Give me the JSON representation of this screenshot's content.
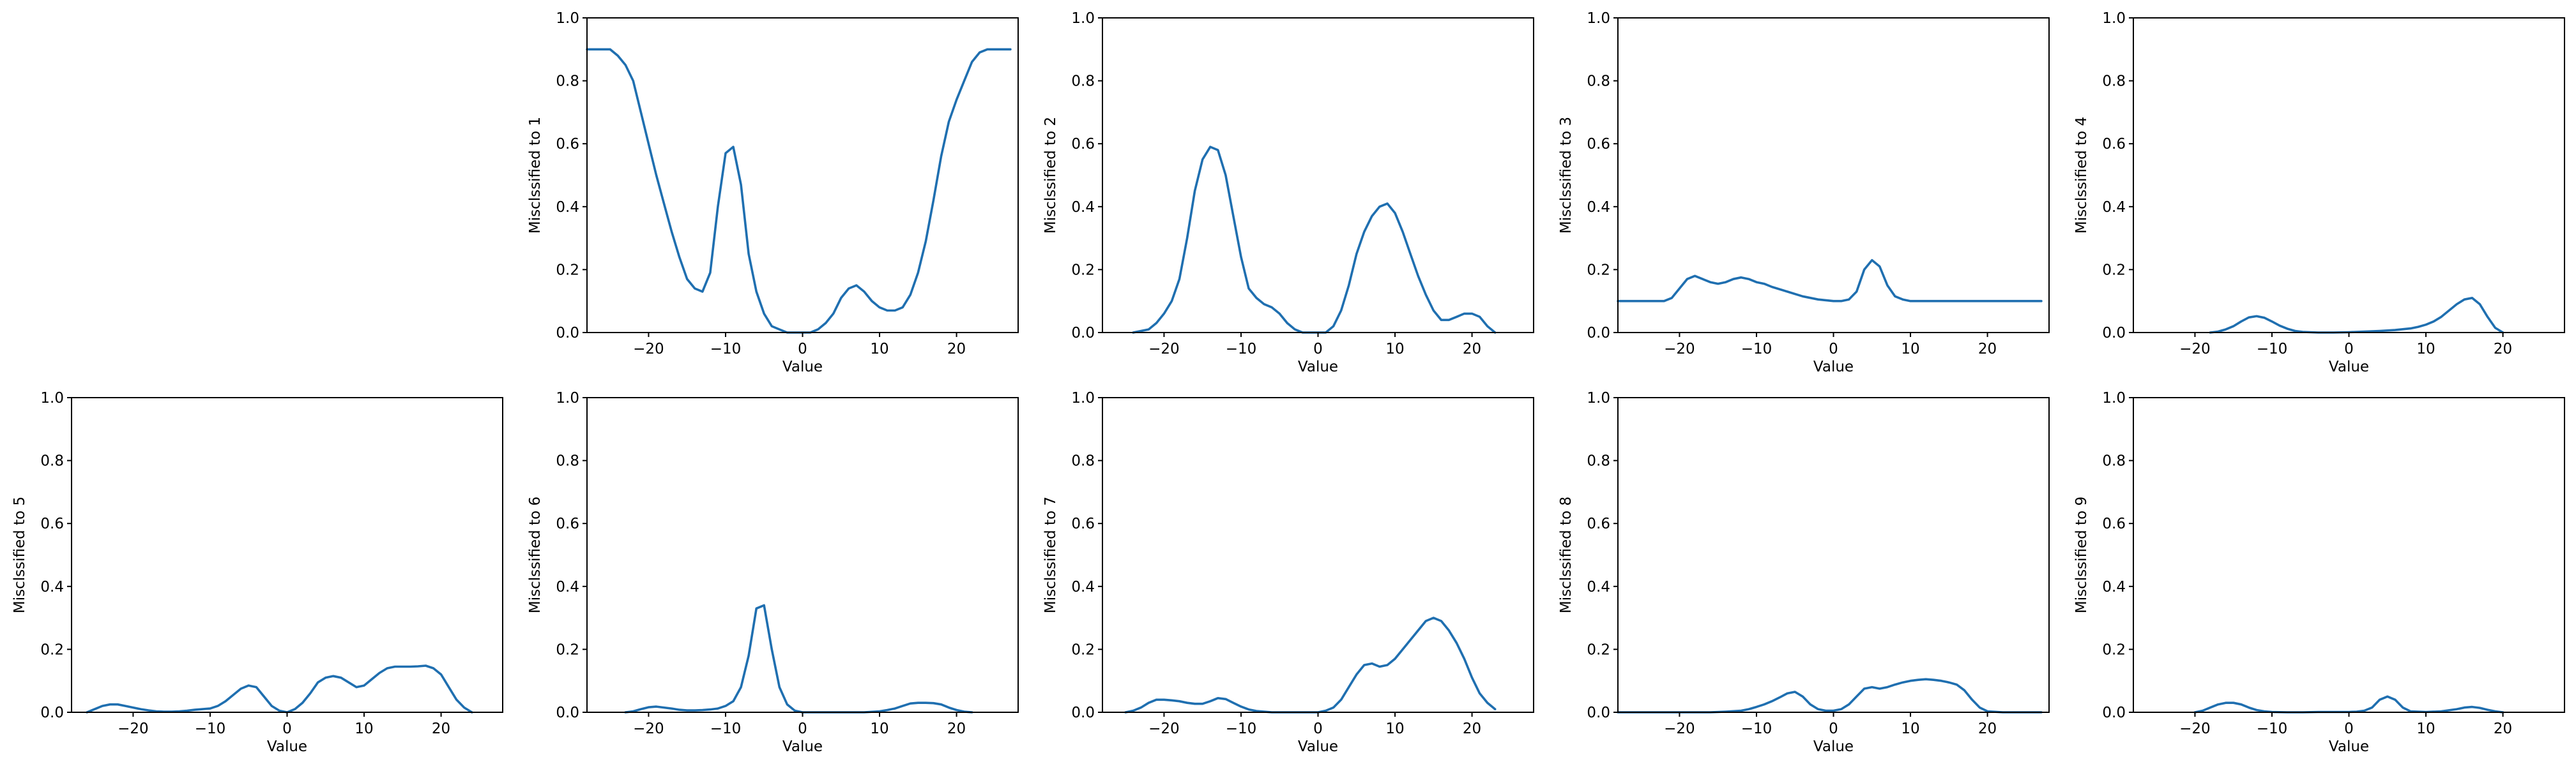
{
  "figure": {
    "line_color": "#1f6fb0"
  },
  "chart_data": [
    {
      "type": "line",
      "row": 0,
      "col": 1,
      "xlabel": "Value",
      "ylabel": "Misclssified to 1",
      "xlim": [
        -28,
        28
      ],
      "ylim": [
        0,
        1
      ],
      "grid": false,
      "xticks": [
        -20,
        -10,
        0,
        10,
        20
      ],
      "yticks": [
        0.0,
        0.2,
        0.4,
        0.6,
        0.8,
        1.0
      ],
      "x": [
        -28,
        -26,
        -25,
        -24,
        -23,
        -22,
        -21,
        -20,
        -19,
        -18,
        -17,
        -16,
        -15,
        -14,
        -13,
        -12,
        -11,
        -10,
        -9,
        -8,
        -7,
        -6,
        -5,
        -4,
        -3,
        -2,
        -1,
        0,
        1,
        2,
        3,
        4,
        5,
        6,
        7,
        8,
        9,
        10,
        11,
        12,
        13,
        14,
        15,
        16,
        17,
        18,
        19,
        20,
        21,
        22,
        23,
        24,
        25,
        26,
        27
      ],
      "y": [
        0.9,
        0.9,
        0.9,
        0.88,
        0.85,
        0.8,
        0.7,
        0.6,
        0.5,
        0.41,
        0.32,
        0.24,
        0.17,
        0.14,
        0.13,
        0.19,
        0.4,
        0.57,
        0.59,
        0.47,
        0.25,
        0.13,
        0.06,
        0.02,
        0.01,
        0.0,
        0.0,
        0.0,
        0.0,
        0.01,
        0.03,
        0.06,
        0.11,
        0.14,
        0.15,
        0.13,
        0.1,
        0.08,
        0.07,
        0.07,
        0.08,
        0.12,
        0.19,
        0.29,
        0.42,
        0.56,
        0.67,
        0.74,
        0.8,
        0.86,
        0.89,
        0.9,
        0.9,
        0.9,
        0.9
      ]
    },
    {
      "type": "line",
      "row": 0,
      "col": 2,
      "xlabel": "Value",
      "ylabel": "Misclssified to 2",
      "xlim": [
        -28,
        28
      ],
      "ylim": [
        0,
        1
      ],
      "grid": false,
      "xticks": [
        -20,
        -10,
        0,
        10,
        20
      ],
      "yticks": [
        0.0,
        0.2,
        0.4,
        0.6,
        0.8,
        1.0
      ],
      "x": [
        -24,
        -22,
        -21,
        -20,
        -19,
        -18,
        -17,
        -16,
        -15,
        -14,
        -13,
        -12,
        -11,
        -10,
        -9,
        -8,
        -7,
        -6,
        -5,
        -4,
        -3,
        -2,
        -1,
        0,
        1,
        2,
        3,
        4,
        5,
        6,
        7,
        8,
        9,
        10,
        11,
        12,
        13,
        14,
        15,
        16,
        17,
        18,
        19,
        20,
        21,
        22,
        23
      ],
      "y": [
        0.0,
        0.01,
        0.03,
        0.06,
        0.1,
        0.17,
        0.3,
        0.45,
        0.55,
        0.59,
        0.58,
        0.5,
        0.37,
        0.24,
        0.14,
        0.11,
        0.09,
        0.08,
        0.06,
        0.03,
        0.01,
        0.0,
        0.0,
        0.0,
        0.0,
        0.02,
        0.07,
        0.15,
        0.25,
        0.32,
        0.37,
        0.4,
        0.41,
        0.38,
        0.32,
        0.25,
        0.18,
        0.12,
        0.07,
        0.04,
        0.04,
        0.05,
        0.06,
        0.06,
        0.05,
        0.02,
        0.0
      ]
    },
    {
      "type": "line",
      "row": 0,
      "col": 3,
      "xlabel": "Value",
      "ylabel": "Misclssified to 3",
      "xlim": [
        -28,
        28
      ],
      "ylim": [
        0,
        1
      ],
      "grid": false,
      "xticks": [
        -20,
        -10,
        0,
        10,
        20
      ],
      "yticks": [
        0.0,
        0.2,
        0.4,
        0.6,
        0.8,
        1.0
      ],
      "x": [
        -28,
        -24,
        -22,
        -21,
        -20,
        -19,
        -18,
        -17,
        -16,
        -15,
        -14,
        -13,
        -12,
        -11,
        -10,
        -9,
        -8,
        -6,
        -4,
        -2,
        0,
        1,
        2,
        3,
        4,
        5,
        6,
        7,
        8,
        9,
        10,
        12,
        15,
        20,
        25,
        27
      ],
      "y": [
        0.1,
        0.1,
        0.1,
        0.11,
        0.14,
        0.17,
        0.18,
        0.17,
        0.16,
        0.155,
        0.16,
        0.17,
        0.175,
        0.17,
        0.16,
        0.155,
        0.145,
        0.13,
        0.115,
        0.105,
        0.1,
        0.1,
        0.105,
        0.13,
        0.2,
        0.23,
        0.21,
        0.15,
        0.115,
        0.105,
        0.1,
        0.1,
        0.1,
        0.1,
        0.1,
        0.1
      ]
    },
    {
      "type": "line",
      "row": 0,
      "col": 4,
      "xlabel": "Value",
      "ylabel": "Misclssified to 4",
      "xlim": [
        -28,
        28
      ],
      "ylim": [
        0,
        1
      ],
      "grid": false,
      "xticks": [
        -20,
        -10,
        0,
        10,
        20
      ],
      "yticks": [
        0.0,
        0.2,
        0.4,
        0.6,
        0.8,
        1.0
      ],
      "x": [
        -18,
        -17,
        -16,
        -15,
        -14,
        -13,
        -12,
        -11,
        -10,
        -9,
        -8,
        -7,
        -6,
        -4,
        -2,
        0,
        2,
        4,
        6,
        8,
        9,
        10,
        11,
        12,
        13,
        14,
        15,
        16,
        17,
        18,
        19,
        20
      ],
      "y": [
        0.0,
        0.003,
        0.01,
        0.02,
        0.035,
        0.048,
        0.052,
        0.047,
        0.035,
        0.022,
        0.012,
        0.005,
        0.002,
        0.0,
        0.0,
        0.001,
        0.003,
        0.005,
        0.008,
        0.013,
        0.018,
        0.025,
        0.035,
        0.05,
        0.07,
        0.09,
        0.105,
        0.11,
        0.09,
        0.05,
        0.015,
        0.0
      ]
    },
    {
      "type": "line",
      "row": 1,
      "col": 0,
      "xlabel": "Value",
      "ylabel": "Misclssified to 5",
      "xlim": [
        -28,
        28
      ],
      "ylim": [
        0,
        1
      ],
      "grid": false,
      "xticks": [
        -20,
        -10,
        0,
        10,
        20
      ],
      "yticks": [
        0.0,
        0.2,
        0.4,
        0.6,
        0.8,
        1.0
      ],
      "x": [
        -26,
        -25,
        -24,
        -23,
        -22,
        -21,
        -20,
        -19,
        -18,
        -17,
        -16,
        -15,
        -14,
        -13,
        -12,
        -11,
        -10,
        -9,
        -8,
        -7,
        -6,
        -5,
        -4,
        -3,
        -2,
        -1,
        0,
        1,
        2,
        3,
        4,
        5,
        6,
        7,
        8,
        9,
        10,
        11,
        12,
        13,
        14,
        15,
        16,
        17,
        18,
        19,
        20,
        21,
        22,
        23,
        24
      ],
      "y": [
        0.0,
        0.01,
        0.02,
        0.025,
        0.025,
        0.02,
        0.015,
        0.01,
        0.006,
        0.003,
        0.002,
        0.002,
        0.003,
        0.005,
        0.008,
        0.01,
        0.012,
        0.02,
        0.035,
        0.055,
        0.075,
        0.085,
        0.08,
        0.05,
        0.02,
        0.005,
        0.0,
        0.01,
        0.03,
        0.06,
        0.095,
        0.11,
        0.115,
        0.11,
        0.095,
        0.08,
        0.085,
        0.105,
        0.125,
        0.14,
        0.145,
        0.145,
        0.145,
        0.146,
        0.148,
        0.14,
        0.12,
        0.08,
        0.04,
        0.015,
        0.0
      ]
    },
    {
      "type": "line",
      "row": 1,
      "col": 1,
      "xlabel": "Value",
      "ylabel": "Misclssified to 6",
      "xlim": [
        -28,
        28
      ],
      "ylim": [
        0,
        1
      ],
      "grid": false,
      "xticks": [
        -20,
        -10,
        0,
        10,
        20
      ],
      "yticks": [
        0.0,
        0.2,
        0.4,
        0.6,
        0.8,
        1.0
      ],
      "x": [
        -23,
        -22,
        -21,
        -20,
        -19,
        -18,
        -17,
        -16,
        -15,
        -14,
        -13,
        -12,
        -11,
        -10,
        -9,
        -8,
        -7,
        -6,
        -5,
        -4,
        -3,
        -2,
        -1,
        0,
        2,
        4,
        6,
        8,
        10,
        11,
        12,
        13,
        14,
        15,
        16,
        17,
        18,
        19,
        20,
        21,
        22
      ],
      "y": [
        0.0,
        0.003,
        0.01,
        0.016,
        0.018,
        0.015,
        0.012,
        0.008,
        0.006,
        0.006,
        0.007,
        0.009,
        0.012,
        0.02,
        0.035,
        0.08,
        0.18,
        0.33,
        0.34,
        0.2,
        0.08,
        0.025,
        0.005,
        0.0,
        0.0,
        0.0,
        0.0,
        0.0,
        0.003,
        0.007,
        0.012,
        0.02,
        0.028,
        0.03,
        0.03,
        0.029,
        0.025,
        0.015,
        0.007,
        0.002,
        0.0
      ]
    },
    {
      "type": "line",
      "row": 1,
      "col": 2,
      "xlabel": "Value",
      "ylabel": "Misclssified to 7",
      "xlim": [
        -28,
        28
      ],
      "ylim": [
        0,
        1
      ],
      "grid": false,
      "xticks": [
        -20,
        -10,
        0,
        10,
        20
      ],
      "yticks": [
        0.0,
        0.2,
        0.4,
        0.6,
        0.8,
        1.0
      ],
      "x": [
        -25,
        -24,
        -23,
        -22,
        -21,
        -20,
        -19,
        -18,
        -17,
        -16,
        -15,
        -14,
        -13,
        -12,
        -11,
        -10,
        -9,
        -8,
        -7,
        -6,
        -5,
        -4,
        -3,
        -2,
        -1,
        0,
        1,
        2,
        3,
        4,
        5,
        6,
        7,
        8,
        9,
        10,
        11,
        12,
        13,
        14,
        15,
        16,
        17,
        18,
        19,
        20,
        21,
        22,
        23
      ],
      "y": [
        0.0,
        0.005,
        0.015,
        0.03,
        0.04,
        0.04,
        0.038,
        0.035,
        0.03,
        0.027,
        0.027,
        0.035,
        0.045,
        0.042,
        0.03,
        0.018,
        0.009,
        0.004,
        0.002,
        0.0,
        0.0,
        0.0,
        0.0,
        0.0,
        0.0,
        0.0,
        0.005,
        0.015,
        0.04,
        0.08,
        0.12,
        0.15,
        0.155,
        0.145,
        0.15,
        0.17,
        0.2,
        0.23,
        0.26,
        0.29,
        0.3,
        0.29,
        0.26,
        0.22,
        0.17,
        0.11,
        0.06,
        0.03,
        0.01
      ]
    },
    {
      "type": "line",
      "row": 1,
      "col": 3,
      "xlabel": "Value",
      "ylabel": "Misclssified to 8",
      "xlim": [
        -28,
        28
      ],
      "ylim": [
        0,
        1
      ],
      "grid": false,
      "xticks": [
        -20,
        -10,
        0,
        10,
        20
      ],
      "yticks": [
        0.0,
        0.2,
        0.4,
        0.6,
        0.8,
        1.0
      ],
      "x": [
        -28,
        -16,
        -14,
        -12,
        -11,
        -10,
        -9,
        -8,
        -7,
        -6,
        -5,
        -4,
        -3,
        -2,
        -1,
        0,
        1,
        2,
        3,
        4,
        5,
        6,
        7,
        8,
        9,
        10,
        11,
        12,
        13,
        14,
        15,
        16,
        17,
        18,
        19,
        20,
        22,
        27
      ],
      "y": [
        0.0,
        0.0,
        0.002,
        0.005,
        0.01,
        0.017,
        0.025,
        0.035,
        0.047,
        0.06,
        0.065,
        0.05,
        0.025,
        0.01,
        0.005,
        0.005,
        0.01,
        0.025,
        0.05,
        0.075,
        0.08,
        0.075,
        0.08,
        0.088,
        0.095,
        0.1,
        0.103,
        0.105,
        0.103,
        0.1,
        0.095,
        0.088,
        0.07,
        0.04,
        0.015,
        0.003,
        0.0,
        0.0
      ]
    },
    {
      "type": "line",
      "row": 1,
      "col": 4,
      "xlabel": "Value",
      "ylabel": "Misclssified to 9",
      "xlim": [
        -28,
        28
      ],
      "ylim": [
        0,
        1
      ],
      "grid": false,
      "xticks": [
        -20,
        -10,
        0,
        10,
        20
      ],
      "yticks": [
        0.0,
        0.2,
        0.4,
        0.6,
        0.8,
        1.0
      ],
      "x": [
        -20,
        -19,
        -18,
        -17,
        -16,
        -15,
        -14,
        -13,
        -12,
        -11,
        -10,
        -8,
        -6,
        -4,
        -2,
        0,
        1,
        2,
        3,
        4,
        5,
        6,
        7,
        8,
        10,
        12,
        14,
        15,
        16,
        17,
        18,
        19,
        20
      ],
      "y": [
        0.0,
        0.005,
        0.015,
        0.025,
        0.03,
        0.03,
        0.025,
        0.015,
        0.007,
        0.003,
        0.001,
        0.0,
        0.0,
        0.001,
        0.001,
        0.001,
        0.002,
        0.005,
        0.015,
        0.04,
        0.05,
        0.04,
        0.015,
        0.003,
        0.001,
        0.003,
        0.01,
        0.015,
        0.017,
        0.014,
        0.008,
        0.003,
        0.0
      ]
    }
  ]
}
